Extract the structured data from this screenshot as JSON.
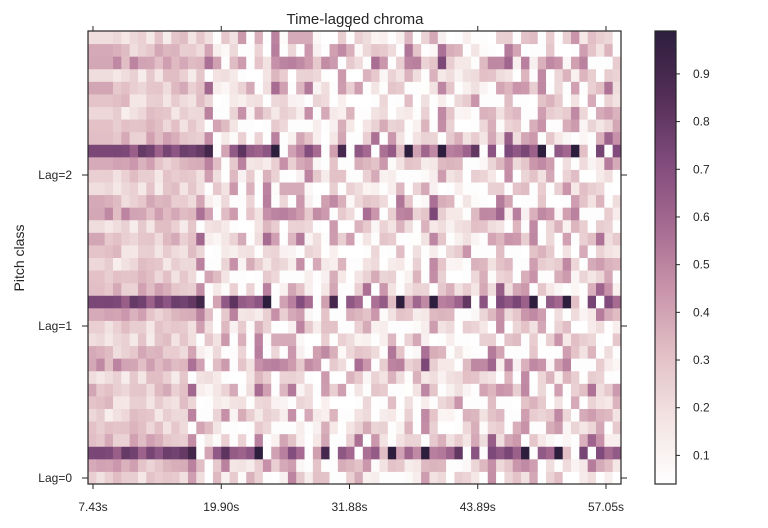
{
  "chart_data": {
    "type": "heatmap",
    "title": "Time-lagged chroma",
    "xlabel": "",
    "ylabel": "Pitch class",
    "x_ticks": [
      "7.43s",
      "19.90s",
      "31.88s",
      "43.89s",
      "57.05s"
    ],
    "y_ticks": [
      "Lag=0",
      "Lag=1",
      "Lag=2"
    ],
    "n_frames": 64,
    "n_rows": 36,
    "rows_per_lag": 12,
    "colorbar": {
      "ticks": [
        "0.1",
        "0.2",
        "0.3",
        "0.4",
        "0.5",
        "0.6",
        "0.7",
        "0.8",
        "0.9"
      ],
      "tick_values": [
        0.1,
        0.2,
        0.3,
        0.4,
        0.5,
        0.6,
        0.7,
        0.8,
        0.9
      ],
      "vmin": 0.04,
      "vmax": 0.99
    },
    "colormap": [
      "#ffffff",
      "#f3e4e3",
      "#e2c0c6",
      "#c994aa",
      "#a66a91",
      "#7f4a7b",
      "#532e56",
      "#2d1e3e"
    ],
    "grid": false,
    "legend": "colorbar-right"
  }
}
